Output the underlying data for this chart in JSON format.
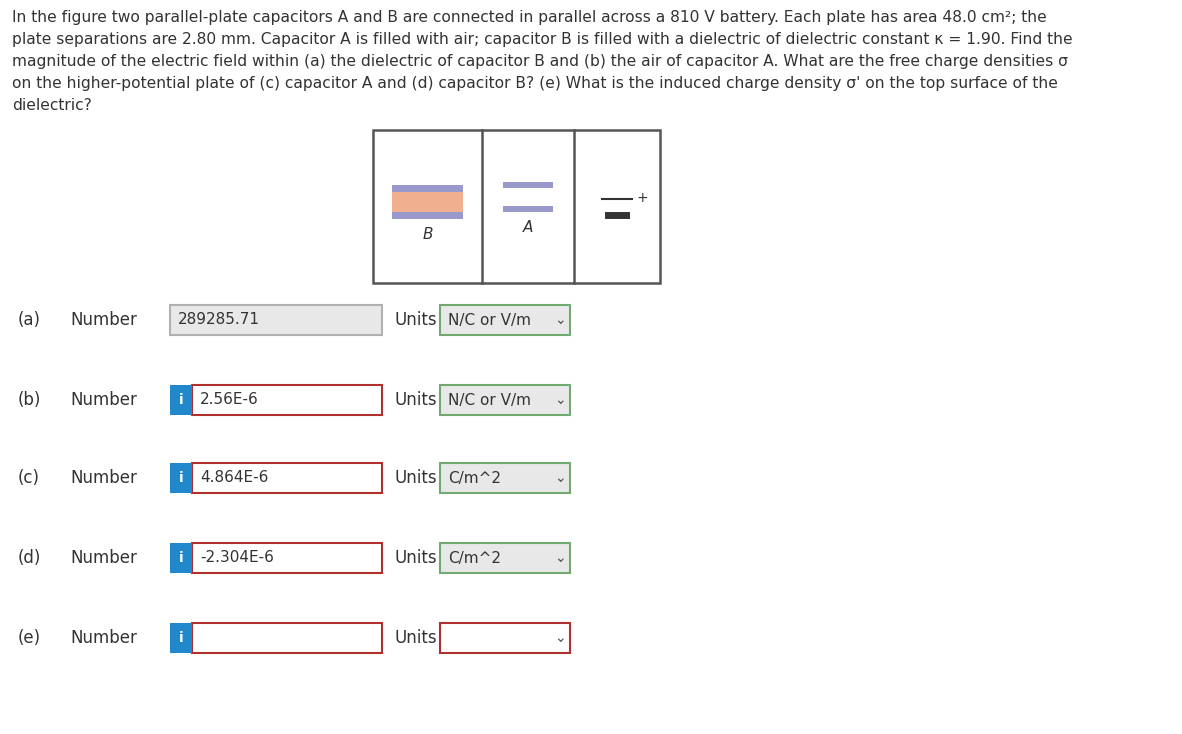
{
  "problem_text_lines": [
    "In the figure two parallel-plate capacitors A and B are connected in parallel across a 810 V battery. Each plate has area 48.0 cm²; the",
    "plate separations are 2.80 mm. Capacitor A is filled with air; capacitor B is filled with a dielectric of dielectric constant κ = 1.90. Find the",
    "magnitude of the electric field within (a) the dielectric of capacitor B and (b) the air of capacitor A. What are the free charge densities σ",
    "on the higher-potential plate of (c) capacitor A and (d) capacitor B? (e) What is the induced charge density σ' on the top surface of the",
    "dielectric?"
  ],
  "rows": [
    {
      "label": "(a)",
      "has_i": false,
      "value": "289285.71",
      "units": "N/C or V/m",
      "input_bg": "#e8e8e8",
      "input_border": "#b0b0b0",
      "units_bg": "#e8e8e8",
      "units_border": "#70aa70"
    },
    {
      "label": "(b)",
      "has_i": true,
      "value": "2.56E-6",
      "units": "N/C or V/m",
      "input_bg": "#ffffff",
      "input_border": "#b03030",
      "units_bg": "#e8e8e8",
      "units_border": "#70aa70"
    },
    {
      "label": "(c)",
      "has_i": true,
      "value": "4.864E-6",
      "units": "C/m^2",
      "input_bg": "#ffffff",
      "input_border": "#b03030",
      "units_bg": "#e8e8e8",
      "units_border": "#70aa70"
    },
    {
      "label": "(d)",
      "has_i": true,
      "value": "-2.304E-6",
      "units": "C/m^2",
      "input_bg": "#ffffff",
      "input_border": "#b03030",
      "units_bg": "#e8e8e8",
      "units_border": "#70aa70"
    },
    {
      "label": "(e)",
      "has_i": true,
      "value": "",
      "units": "",
      "input_bg": "#ffffff",
      "input_border": "#b03030",
      "units_bg": "#ffffff",
      "units_border": "#b03030"
    }
  ],
  "bg_color": "#ffffff",
  "text_color": "#333333",
  "i_button_color": "#2288cc"
}
